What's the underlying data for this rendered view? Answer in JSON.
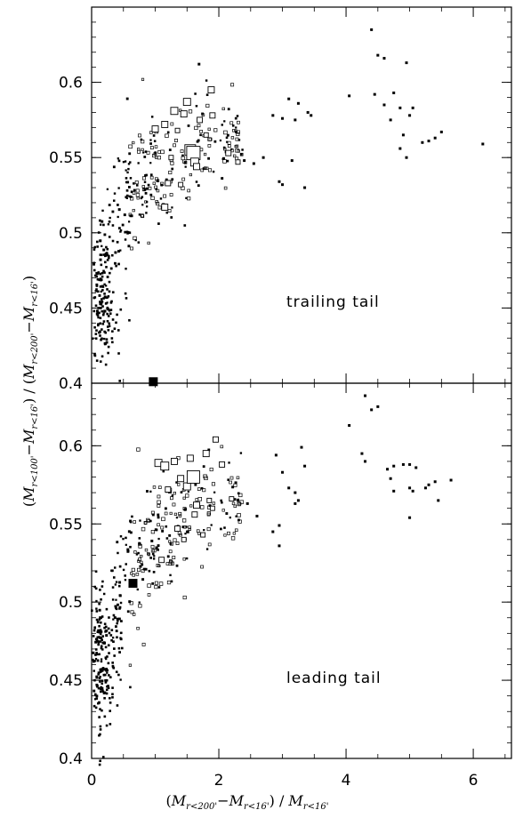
{
  "chart_data": {
    "type": "scatter",
    "xlabel": "(M_{r<200'} − M_{r<16'}) / M_{r<16'}",
    "ylabel": "(M_{r<100'} − M_{r<16'}) / (M_{r<200'} − M_{r<16'})",
    "xlim": [
      0,
      6.6
    ],
    "x_ticks": [
      "0",
      "2",
      "4",
      "6"
    ],
    "panels": [
      {
        "label": "trailing tail",
        "ylim": [
          0.4,
          0.65
        ],
        "y_ticks": [
          "0.4",
          "0.45",
          "0.5",
          "0.55",
          "0.6"
        ],
        "highlight": {
          "x": 0.97,
          "y": 0.401
        },
        "clump_x": [
          0.0,
          0.55
        ],
        "clump_y": [
          0.42,
          0.49
        ],
        "clump_n": 130,
        "band": [
          [
            0.1,
            0.46,
            0.03
          ],
          [
            0.3,
            0.49,
            0.035
          ],
          [
            0.5,
            0.515,
            0.035
          ],
          [
            0.7,
            0.53,
            0.035
          ],
          [
            0.9,
            0.54,
            0.035
          ],
          [
            1.1,
            0.545,
            0.035
          ],
          [
            1.4,
            0.55,
            0.035
          ],
          [
            1.8,
            0.56,
            0.03
          ],
          [
            2.2,
            0.56,
            0.025
          ]
        ],
        "band_n": 330,
        "squares": [
          {
            "x": 1.0,
            "y": 0.569,
            "s": 7
          },
          {
            "x": 1.15,
            "y": 0.572,
            "s": 7
          },
          {
            "x": 1.3,
            "y": 0.581,
            "s": 8
          },
          {
            "x": 1.45,
            "y": 0.579,
            "s": 7
          },
          {
            "x": 1.5,
            "y": 0.587,
            "s": 8
          },
          {
            "x": 1.55,
            "y": 0.555,
            "s": 12
          },
          {
            "x": 1.6,
            "y": 0.553,
            "s": 15
          },
          {
            "x": 1.62,
            "y": 0.547,
            "s": 9
          },
          {
            "x": 1.65,
            "y": 0.544,
            "s": 7
          },
          {
            "x": 1.7,
            "y": 0.575,
            "s": 6
          },
          {
            "x": 1.88,
            "y": 0.595,
            "s": 7
          },
          {
            "x": 1.15,
            "y": 0.517,
            "s": 7
          },
          {
            "x": 1.2,
            "y": 0.533,
            "s": 6
          },
          {
            "x": 1.35,
            "y": 0.568,
            "s": 5
          },
          {
            "x": 1.9,
            "y": 0.578,
            "s": 6
          },
          {
            "x": 2.15,
            "y": 0.553,
            "s": 6
          },
          {
            "x": 1.25,
            "y": 0.55,
            "s": 5
          },
          {
            "x": 1.8,
            "y": 0.565,
            "s": 5
          },
          {
            "x": 2.3,
            "y": 0.547,
            "s": 5
          },
          {
            "x": 1.4,
            "y": 0.532,
            "s": 5
          }
        ],
        "tail": [
          {
            "x": 4.4,
            "y": 0.635
          },
          {
            "x": 4.5,
            "y": 0.618
          },
          {
            "x": 4.6,
            "y": 0.616
          },
          {
            "x": 4.95,
            "y": 0.613
          },
          {
            "x": 4.05,
            "y": 0.591
          },
          {
            "x": 4.45,
            "y": 0.592
          },
          {
            "x": 4.75,
            "y": 0.593
          },
          {
            "x": 4.6,
            "y": 0.585
          },
          {
            "x": 4.85,
            "y": 0.583
          },
          {
            "x": 5.0,
            "y": 0.578
          },
          {
            "x": 4.7,
            "y": 0.575
          },
          {
            "x": 4.9,
            "y": 0.565
          },
          {
            "x": 5.05,
            "y": 0.583
          },
          {
            "x": 5.3,
            "y": 0.561
          },
          {
            "x": 5.4,
            "y": 0.563
          },
          {
            "x": 5.5,
            "y": 0.567
          },
          {
            "x": 5.2,
            "y": 0.56
          },
          {
            "x": 6.15,
            "y": 0.559
          },
          {
            "x": 4.95,
            "y": 0.55
          },
          {
            "x": 4.85,
            "y": 0.556
          },
          {
            "x": 3.1,
            "y": 0.589
          },
          {
            "x": 3.25,
            "y": 0.586
          },
          {
            "x": 3.4,
            "y": 0.58
          },
          {
            "x": 2.85,
            "y": 0.578
          },
          {
            "x": 3.0,
            "y": 0.576
          },
          {
            "x": 3.2,
            "y": 0.575
          },
          {
            "x": 2.95,
            "y": 0.534
          },
          {
            "x": 3.15,
            "y": 0.548
          },
          {
            "x": 3.35,
            "y": 0.53
          },
          {
            "x": 3.0,
            "y": 0.532
          },
          {
            "x": 2.4,
            "y": 0.548
          },
          {
            "x": 2.55,
            "y": 0.546
          },
          {
            "x": 2.7,
            "y": 0.55
          },
          {
            "x": 3.45,
            "y": 0.578
          }
        ]
      },
      {
        "label": "leading tail",
        "ylim": [
          0.4,
          0.64
        ],
        "y_ticks": [
          "0.4",
          "0.45",
          "0.5",
          "0.55",
          "0.6"
        ],
        "highlight": {
          "x": 0.65,
          "y": 0.512
        },
        "clump_x": [
          0.0,
          0.5
        ],
        "clump_y": [
          0.43,
          0.5
        ],
        "clump_n": 140,
        "band": [
          [
            0.1,
            0.46,
            0.03
          ],
          [
            0.3,
            0.49,
            0.035
          ],
          [
            0.5,
            0.51,
            0.035
          ],
          [
            0.7,
            0.525,
            0.035
          ],
          [
            0.9,
            0.535,
            0.035
          ],
          [
            1.1,
            0.545,
            0.035
          ],
          [
            1.4,
            0.55,
            0.035
          ],
          [
            1.8,
            0.56,
            0.03
          ],
          [
            2.2,
            0.565,
            0.025
          ]
        ],
        "band_n": 320,
        "squares": [
          {
            "x": 1.05,
            "y": 0.589,
            "s": 8
          },
          {
            "x": 1.15,
            "y": 0.587,
            "s": 9
          },
          {
            "x": 1.3,
            "y": 0.59,
            "s": 7
          },
          {
            "x": 1.4,
            "y": 0.579,
            "s": 7
          },
          {
            "x": 1.5,
            "y": 0.574,
            "s": 8
          },
          {
            "x": 1.6,
            "y": 0.58,
            "s": 14
          },
          {
            "x": 1.55,
            "y": 0.592,
            "s": 7
          },
          {
            "x": 1.65,
            "y": 0.562,
            "s": 7
          },
          {
            "x": 1.62,
            "y": 0.556,
            "s": 6
          },
          {
            "x": 1.8,
            "y": 0.595,
            "s": 7
          },
          {
            "x": 1.95,
            "y": 0.604,
            "s": 6
          },
          {
            "x": 1.2,
            "y": 0.572,
            "s": 6
          },
          {
            "x": 1.35,
            "y": 0.547,
            "s": 6
          },
          {
            "x": 1.1,
            "y": 0.527,
            "s": 6
          },
          {
            "x": 1.75,
            "y": 0.543,
            "s": 5
          },
          {
            "x": 2.05,
            "y": 0.588,
            "s": 6
          },
          {
            "x": 1.85,
            "y": 0.565,
            "s": 5
          },
          {
            "x": 2.2,
            "y": 0.566,
            "s": 5
          },
          {
            "x": 1.9,
            "y": 0.56,
            "s": 5
          },
          {
            "x": 1.45,
            "y": 0.54,
            "s": 5
          }
        ],
        "tail": [
          {
            "x": 4.3,
            "y": 0.632
          },
          {
            "x": 4.4,
            "y": 0.623
          },
          {
            "x": 4.5,
            "y": 0.625
          },
          {
            "x": 4.05,
            "y": 0.613
          },
          {
            "x": 4.25,
            "y": 0.595
          },
          {
            "x": 4.3,
            "y": 0.59
          },
          {
            "x": 4.65,
            "y": 0.585
          },
          {
            "x": 4.75,
            "y": 0.587
          },
          {
            "x": 4.9,
            "y": 0.588
          },
          {
            "x": 5.0,
            "y": 0.588
          },
          {
            "x": 5.1,
            "y": 0.586
          },
          {
            "x": 4.7,
            "y": 0.579
          },
          {
            "x": 4.75,
            "y": 0.571
          },
          {
            "x": 5.0,
            "y": 0.573
          },
          {
            "x": 5.05,
            "y": 0.571
          },
          {
            "x": 5.25,
            "y": 0.573
          },
          {
            "x": 5.3,
            "y": 0.575
          },
          {
            "x": 5.45,
            "y": 0.565
          },
          {
            "x": 5.65,
            "y": 0.578
          },
          {
            "x": 5.0,
            "y": 0.554
          },
          {
            "x": 5.4,
            "y": 0.577
          },
          {
            "x": 2.9,
            "y": 0.594
          },
          {
            "x": 3.3,
            "y": 0.599
          },
          {
            "x": 3.35,
            "y": 0.587
          },
          {
            "x": 3.0,
            "y": 0.583
          },
          {
            "x": 3.1,
            "y": 0.573
          },
          {
            "x": 3.2,
            "y": 0.57
          },
          {
            "x": 3.25,
            "y": 0.565
          },
          {
            "x": 3.2,
            "y": 0.563
          },
          {
            "x": 2.95,
            "y": 0.536
          },
          {
            "x": 2.95,
            "y": 0.549
          },
          {
            "x": 2.85,
            "y": 0.545
          },
          {
            "x": 2.6,
            "y": 0.555
          },
          {
            "x": 2.3,
            "y": 0.565
          },
          {
            "x": 2.45,
            "y": 0.563
          }
        ]
      }
    ]
  }
}
